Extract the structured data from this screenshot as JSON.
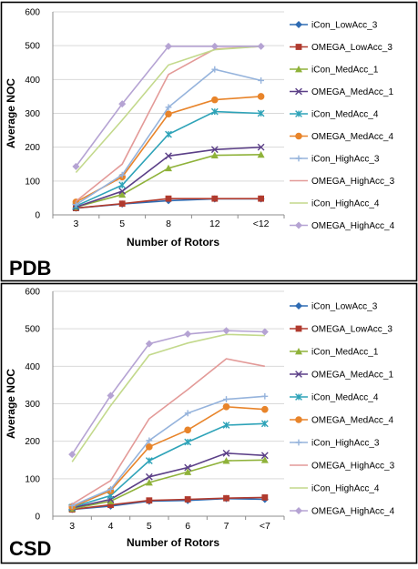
{
  "figure": {
    "colors": {
      "iCon_LowAcc_3": "#2e6bb3",
      "OMEGA_LowAcc_3": "#b03a2e",
      "iCon_MedAcc_1": "#8fb23a",
      "OMEGA_MedAcc_1": "#5b3f87",
      "iCon_MedAcc_4": "#2ea3b8",
      "OMEGA_MedAcc_4": "#e8842a",
      "iCon_HighAcc_3": "#95b3dc",
      "OMEGA_HighAcc_3": "#e39a98",
      "iCon_HighAcc_4": "#c3d98c",
      "OMEGA_HighAcc_4": "#b5a3d3"
    },
    "markers": {
      "iCon_LowAcc_3": "diamond",
      "OMEGA_LowAcc_3": "square",
      "iCon_MedAcc_1": "triangle",
      "OMEGA_MedAcc_1": "cross",
      "iCon_MedAcc_4": "x-cross",
      "OMEGA_MedAcc_4": "circle",
      "iCon_HighAcc_3": "plus",
      "OMEGA_HighAcc_3": "none",
      "iCon_HighAcc_4": "none",
      "OMEGA_HighAcc_4": "diamond"
    }
  },
  "chart_data": [
    {
      "type": "line",
      "panel_label": "PDB",
      "categories": [
        "3",
        "5",
        "8",
        "12",
        "<12"
      ],
      "xlabel": "Number of Rotors",
      "ylabel": "Average NOC",
      "ylim": [
        0,
        600
      ],
      "yticks": [
        "0",
        "100",
        "200",
        "300",
        "400",
        "500",
        "600"
      ],
      "grid": true,
      "legend": "right",
      "series": [
        {
          "name": "iCon_LowAcc_3",
          "values": [
            20,
            32,
            42,
            47,
            47
          ]
        },
        {
          "name": "OMEGA_LowAcc_3",
          "values": [
            20,
            33,
            48,
            48,
            48
          ]
        },
        {
          "name": "iCon_MedAcc_1",
          "values": [
            23,
            60,
            138,
            176,
            178
          ]
        },
        {
          "name": "OMEGA_MedAcc_1",
          "values": [
            23,
            70,
            174,
            193,
            200
          ]
        },
        {
          "name": "iCon_MedAcc_4",
          "values": [
            26,
            88,
            238,
            305,
            300
          ]
        },
        {
          "name": "OMEGA_MedAcc_4",
          "values": [
            38,
            112,
            298,
            340,
            350
          ]
        },
        {
          "name": "iCon_HighAcc_3",
          "values": [
            30,
            118,
            318,
            430,
            397
          ]
        },
        {
          "name": "OMEGA_HighAcc_3",
          "values": [
            40,
            150,
            415,
            490,
            498
          ]
        },
        {
          "name": "iCon_HighAcc_4",
          "values": [
            125,
            280,
            443,
            488,
            498
          ]
        },
        {
          "name": "OMEGA_HighAcc_4",
          "values": [
            143,
            328,
            498,
            498,
            498
          ]
        }
      ]
    },
    {
      "type": "line",
      "panel_label": "CSD",
      "categories": [
        "3",
        "4",
        "5",
        "6",
        "7",
        "<7"
      ],
      "xlabel": "Number of Rotors",
      "ylabel": "Average NOC",
      "ylim": [
        0,
        600
      ],
      "yticks": [
        "0",
        "100",
        "200",
        "300",
        "400",
        "500",
        "600"
      ],
      "grid": true,
      "legend": "right",
      "series": [
        {
          "name": "iCon_LowAcc_3",
          "values": [
            18,
            27,
            40,
            42,
            47,
            45
          ]
        },
        {
          "name": "OMEGA_LowAcc_3",
          "values": [
            18,
            30,
            42,
            45,
            48,
            50
          ]
        },
        {
          "name": "iCon_MedAcc_1",
          "values": [
            20,
            40,
            90,
            118,
            148,
            150
          ]
        },
        {
          "name": "OMEGA_MedAcc_1",
          "values": [
            22,
            45,
            105,
            130,
            168,
            162
          ]
        },
        {
          "name": "iCon_MedAcc_4",
          "values": [
            24,
            55,
            148,
            198,
            243,
            247
          ]
        },
        {
          "name": "OMEGA_MedAcc_4",
          "values": [
            25,
            68,
            185,
            230,
            292,
            285
          ]
        },
        {
          "name": "iCon_HighAcc_3",
          "values": [
            28,
            72,
            202,
            275,
            312,
            320
          ]
        },
        {
          "name": "OMEGA_HighAcc_3",
          "values": [
            32,
            95,
            260,
            338,
            420,
            400
          ]
        },
        {
          "name": "iCon_HighAcc_4",
          "values": [
            145,
            295,
            430,
            462,
            485,
            482
          ]
        },
        {
          "name": "OMEGA_HighAcc_4",
          "values": [
            165,
            322,
            460,
            486,
            495,
            492
          ]
        }
      ]
    }
  ]
}
